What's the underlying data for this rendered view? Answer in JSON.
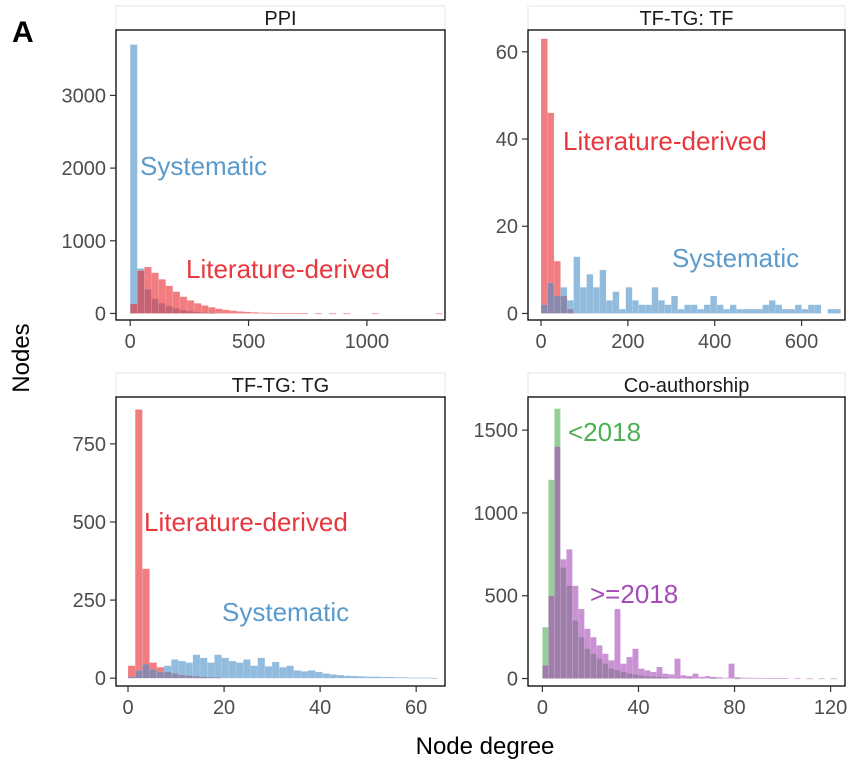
{
  "figure": {
    "panel_label": "A",
    "xlabel": "Node degree",
    "ylabel": "Nodes"
  },
  "chart_data": [
    {
      "type": "histogram",
      "title": "PPI",
      "xlim": [
        -60,
        1330
      ],
      "ylim": [
        -90,
        3900
      ],
      "x_ticks": [
        0,
        500,
        1000
      ],
      "y_ticks": [
        0,
        1000,
        2000,
        3000
      ],
      "series": [
        {
          "color": "#4a90c8",
          "bin_width": 30,
          "x": [
            0,
            30,
            60,
            90,
            120,
            150,
            180,
            210,
            240,
            270,
            300,
            330
          ],
          "values": [
            3700,
            620,
            330,
            200,
            140,
            100,
            70,
            45,
            30,
            20,
            12,
            8
          ]
        },
        {
          "color": "#e8262b",
          "bin_width": 30,
          "x": [
            0,
            30,
            60,
            90,
            120,
            150,
            180,
            210,
            240,
            270,
            300,
            330,
            360,
            390,
            420,
            450,
            480,
            510,
            540,
            570,
            600,
            630,
            660,
            690,
            720,
            780,
            840,
            900,
            1020,
            1290
          ],
          "values": [
            130,
            590,
            640,
            560,
            470,
            380,
            300,
            230,
            180,
            140,
            110,
            85,
            65,
            50,
            38,
            28,
            22,
            16,
            12,
            9,
            7,
            5,
            4,
            3,
            3,
            2,
            2,
            2,
            1,
            1
          ]
        }
      ],
      "annotations": [
        {
          "text": "Systematic",
          "color": "#5b9bcb"
        },
        {
          "text": "Literature-derived",
          "color": "#e8383d"
        }
      ]
    },
    {
      "type": "histogram",
      "title": "TF-TG: TF",
      "xlim": [
        -30,
        700
      ],
      "ylim": [
        -1.5,
        65
      ],
      "x_ticks": [
        0,
        200,
        400,
        600
      ],
      "y_ticks": [
        0,
        20,
        40,
        60
      ],
      "series": [
        {
          "color": "#e8262b",
          "bin_width": 15,
          "x": [
            0,
            15,
            30,
            45,
            60
          ],
          "values": [
            63,
            46,
            12,
            4,
            1
          ]
        },
        {
          "color": "#4a90c8",
          "bin_width": 15,
          "x": [
            0,
            15,
            30,
            45,
            60,
            75,
            90,
            105,
            120,
            135,
            150,
            165,
            180,
            195,
            210,
            225,
            240,
            255,
            270,
            285,
            300,
            315,
            330,
            345,
            360,
            375,
            390,
            405,
            420,
            435,
            450,
            465,
            480,
            495,
            510,
            525,
            540,
            555,
            570,
            585,
            600,
            615,
            630,
            645,
            660,
            675
          ],
          "values": [
            2,
            7,
            4,
            6,
            3,
            13,
            6,
            9,
            6,
            10,
            3,
            5,
            1,
            6,
            3,
            2,
            2,
            6,
            3,
            2,
            4,
            1,
            2,
            2,
            1,
            2,
            4,
            2,
            1,
            2,
            1,
            1,
            1,
            1,
            2,
            3,
            2,
            1,
            1,
            2,
            1,
            2,
            2,
            0,
            1,
            1
          ]
        }
      ],
      "annotations": [
        {
          "text": "Literature-derived",
          "color": "#e8383d"
        },
        {
          "text": "Systematic",
          "color": "#5b9bcb"
        }
      ]
    },
    {
      "type": "histogram",
      "title": "TF-TG: TG",
      "xlim": [
        -2.5,
        66
      ],
      "ylim": [
        -25,
        900
      ],
      "x_ticks": [
        0,
        20,
        40,
        60
      ],
      "y_ticks": [
        0,
        250,
        500,
        750
      ],
      "series": [
        {
          "color": "#e8262b",
          "bin_width": 1.5,
          "x": [
            0,
            1.5,
            3,
            4.5,
            6,
            7.5,
            9,
            10.5,
            12,
            13.5,
            15,
            16.5,
            18
          ],
          "values": [
            40,
            860,
            350,
            50,
            35,
            20,
            15,
            10,
            8,
            6,
            4,
            3,
            2
          ]
        },
        {
          "color": "#4a90c8",
          "bin_width": 1.5,
          "x": [
            0,
            1.5,
            3,
            4.5,
            6,
            7.5,
            9,
            10.5,
            12,
            13.5,
            15,
            16.5,
            18,
            19.5,
            21,
            22.5,
            24,
            25.5,
            27,
            28.5,
            30,
            31.5,
            33,
            34.5,
            36,
            37.5,
            39,
            40.5,
            42,
            43.5,
            45,
            46.5,
            48,
            49.5,
            51,
            52.5,
            54,
            55.5,
            57,
            58.5,
            60,
            61.5,
            63
          ],
          "values": [
            5,
            25,
            45,
            28,
            20,
            40,
            60,
            55,
            50,
            75,
            65,
            50,
            75,
            65,
            55,
            50,
            60,
            40,
            65,
            38,
            52,
            35,
            40,
            25,
            22,
            25,
            20,
            15,
            12,
            10,
            8,
            7,
            6,
            5,
            5,
            4,
            4,
            3,
            3,
            2,
            2,
            2,
            1
          ]
        }
      ],
      "annotations": [
        {
          "text": "Literature-derived",
          "color": "#e8383d"
        },
        {
          "text": "Systematic",
          "color": "#5b9bcb"
        }
      ]
    },
    {
      "type": "histogram",
      "title": "Co-authorship",
      "xlim": [
        -6,
        126
      ],
      "ylim": [
        -45,
        1700
      ],
      "x_ticks": [
        0,
        40,
        80,
        120
      ],
      "y_ticks": [
        0,
        500,
        1000,
        1500
      ],
      "series": [
        {
          "color": "#4caf50",
          "bin_width": 2.5,
          "x": [
            0,
            2.5,
            5,
            7.5,
            10,
            12.5,
            15,
            17.5,
            20,
            22.5,
            25,
            27.5,
            30,
            32.5,
            35,
            37.5,
            40,
            42.5,
            45,
            47.5,
            50,
            55,
            60,
            70,
            80
          ],
          "values": [
            310,
            1200,
            1630,
            670,
            560,
            350,
            250,
            180,
            150,
            120,
            90,
            60,
            50,
            40,
            30,
            25,
            20,
            15,
            12,
            10,
            8,
            5,
            4,
            2,
            1
          ]
        },
        {
          "color": "#a64ab8",
          "bin_width": 2.5,
          "x": [
            0,
            2.5,
            5,
            7.5,
            10,
            12.5,
            15,
            17.5,
            20,
            22.5,
            25,
            27.5,
            30,
            32.5,
            35,
            37.5,
            40,
            42.5,
            45,
            47.5,
            50,
            52.5,
            55,
            57.5,
            60,
            62.5,
            65,
            67.5,
            70,
            72.5,
            75,
            77.5,
            80,
            82.5,
            85,
            87.5,
            90,
            92.5,
            95,
            97.5,
            100,
            105,
            110,
            115,
            120
          ],
          "values": [
            80,
            500,
            1400,
            720,
            780,
            560,
            420,
            300,
            250,
            200,
            150,
            110,
            420,
            90,
            130,
            180,
            60,
            50,
            40,
            70,
            30,
            25,
            120,
            20,
            15,
            30,
            10,
            15,
            10,
            8,
            5,
            90,
            8,
            6,
            5,
            4,
            4,
            3,
            3,
            2,
            2,
            2,
            1,
            1,
            1
          ]
        }
      ],
      "annotations": [
        {
          "text": "<2018",
          "color": "#4caf50"
        },
        {
          "text": ">=2018",
          "color": "#a64ab8"
        }
      ]
    }
  ]
}
